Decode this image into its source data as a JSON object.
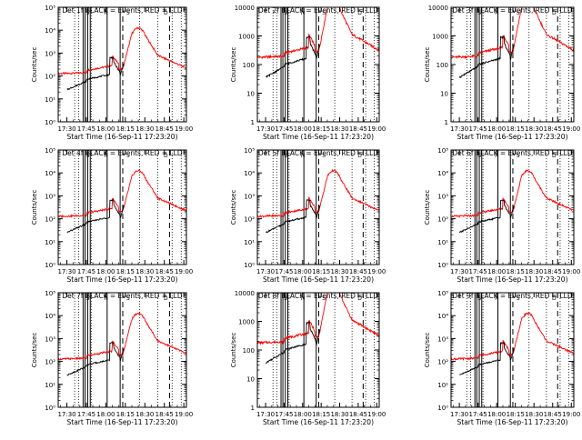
{
  "chart_data": [
    {
      "type": "line",
      "title": "Det 1f BLACK = Events, RED = LLD",
      "ylabel": "Counts/sec",
      "xlabel": "Start Time (16-Sep-11 17:23:20)",
      "yscale": "log",
      "ylim": [
        1,
        100000
      ],
      "ytick_style": "exp",
      "ytick_labels": [
        "10⁰",
        "10¹",
        "10²",
        "10³",
        "10⁴",
        "10⁵"
      ],
      "xtick_labels": [
        "17:30",
        "17:45",
        "18:00",
        "18:15",
        "18:30",
        "18:45",
        "19:00"
      ],
      "series": [
        {
          "color": "black",
          "level": "low"
        },
        {
          "color": "red",
          "level": "high"
        }
      ]
    },
    {
      "type": "line",
      "title": "Det 2f BLACK = Events, RED = LLD",
      "ylabel": "Counts/sec",
      "xlabel": "Start Time (16-Sep-11 17:23:20)",
      "yscale": "log",
      "ylim": [
        1,
        10000
      ],
      "ytick_style": "num",
      "ytick_labels": [
        "1",
        "10",
        "100",
        "1000",
        "10000"
      ],
      "xtick_labels": [
        "17:30",
        "17:45",
        "18:00",
        "18:15",
        "18:30",
        "18:45",
        "19:00"
      ],
      "series": [
        {
          "color": "black",
          "level": "low"
        },
        {
          "color": "red",
          "level": "high"
        }
      ]
    },
    {
      "type": "line",
      "title": "Det 3f BLACK = Events, RED = LLD",
      "ylabel": "Counts/sec",
      "xlabel": "Start Time (16-Sep-11 17:23:20)",
      "yscale": "log",
      "ylim": [
        1,
        10000
      ],
      "ytick_style": "num",
      "ytick_labels": [
        "1",
        "10",
        "100",
        "1000",
        "10000"
      ],
      "xtick_labels": [
        "17:30",
        "17:45",
        "18:00",
        "18:15",
        "18:30",
        "18:45",
        "19:00"
      ],
      "series": [
        {
          "color": "black",
          "level": "low"
        },
        {
          "color": "red",
          "level": "high"
        }
      ]
    },
    {
      "type": "line",
      "title": "Det 4f BLACK = Events, RED = LLD",
      "ylabel": "Counts/sec",
      "xlabel": "Start Time (16-Sep-11 17:23:20)",
      "yscale": "log",
      "ylim": [
        1,
        100000
      ],
      "ytick_style": "exp",
      "ytick_labels": [
        "10⁰",
        "10¹",
        "10²",
        "10³",
        "10⁴",
        "10⁵"
      ],
      "xtick_labels": [
        "17:30",
        "17:45",
        "18:00",
        "18:15",
        "18:30",
        "18:45",
        "19:00"
      ],
      "series": [
        {
          "color": "black",
          "level": "low"
        },
        {
          "color": "red",
          "level": "high"
        }
      ]
    },
    {
      "type": "line",
      "title": "Det 5f BLACK = Events, RED = LLD",
      "ylabel": "Counts/sec",
      "xlabel": "Start Time (16-Sep-11 17:23:20)",
      "yscale": "log",
      "ylim": [
        1,
        100000
      ],
      "ytick_style": "exp",
      "ytick_labels": [
        "10⁰",
        "10¹",
        "10²",
        "10³",
        "10⁴",
        "10⁵"
      ],
      "xtick_labels": [
        "17:30",
        "17:45",
        "18:00",
        "18:15",
        "18:30",
        "18:45",
        "19:00"
      ],
      "series": [
        {
          "color": "black",
          "level": "low"
        },
        {
          "color": "red",
          "level": "high"
        }
      ]
    },
    {
      "type": "line",
      "title": "Det 6f BLACK = Events, RED = LLD",
      "ylabel": "Counts/sec",
      "xlabel": "Start Time (16-Sep-11 17:23:20)",
      "yscale": "log",
      "ylim": [
        1,
        100000
      ],
      "ytick_style": "exp",
      "ytick_labels": [
        "10⁰",
        "10¹",
        "10²",
        "10³",
        "10⁴",
        "10⁵"
      ],
      "xtick_labels": [
        "17:30",
        "17:45",
        "18:00",
        "18:15",
        "18:30",
        "18:45",
        "19:00"
      ],
      "series": [
        {
          "color": "black",
          "level": "low"
        },
        {
          "color": "red",
          "level": "high"
        }
      ]
    },
    {
      "type": "line",
      "title": "Det 7f BLACK = Events, RED = LLD",
      "ylabel": "Counts/sec",
      "xlabel": "Start Time (16-Sep-11 17:23:20)",
      "yscale": "log",
      "ylim": [
        1,
        100000
      ],
      "ytick_style": "exp",
      "ytick_labels": [
        "10⁰",
        "10¹",
        "10²",
        "10³",
        "10⁴",
        "10⁵"
      ],
      "xtick_labels": [
        "17:30",
        "17:45",
        "18:00",
        "18:15",
        "18:30",
        "18:45",
        "19:00"
      ],
      "series": [
        {
          "color": "black",
          "level": "low"
        },
        {
          "color": "red",
          "level": "high"
        }
      ]
    },
    {
      "type": "line",
      "title": "Det 8f BLACK = Events, RED = LLD",
      "ylabel": "Counts/sec",
      "xlabel": "Start Time (16-Sep-11 17:23:20)",
      "yscale": "log",
      "ylim": [
        1,
        10000
      ],
      "ytick_style": "num",
      "ytick_labels": [
        "1",
        "10",
        "100",
        "1000",
        "10000"
      ],
      "xtick_labels": [
        "17:30",
        "17:45",
        "18:00",
        "18:15",
        "18:30",
        "18:45",
        "19:00"
      ],
      "series": [
        {
          "color": "black",
          "level": "low"
        },
        {
          "color": "red",
          "level": "high"
        }
      ]
    },
    {
      "type": "line",
      "title": "Det 9f BLACK = Events, RED = LLD",
      "ylabel": "Counts/sec",
      "xlabel": "Start Time (16-Sep-11 17:23:20)",
      "yscale": "log",
      "ylim": [
        1,
        100000
      ],
      "ytick_style": "exp",
      "ytick_labels": [
        "10⁰",
        "10¹",
        "10²",
        "10³",
        "10⁴",
        "10⁵"
      ],
      "xtick_labels": [
        "17:30",
        "17:45",
        "18:00",
        "18:15",
        "18:30",
        "18:45",
        "19:00"
      ],
      "series": [
        {
          "color": "black",
          "level": "low"
        },
        {
          "color": "red",
          "level": "high"
        }
      ]
    }
  ],
  "markers": {
    "symbols": [
      "S",
      "N",
      "S",
      "D"
    ]
  },
  "colors": {
    "events": "#000000",
    "lld": "#ff0000"
  }
}
